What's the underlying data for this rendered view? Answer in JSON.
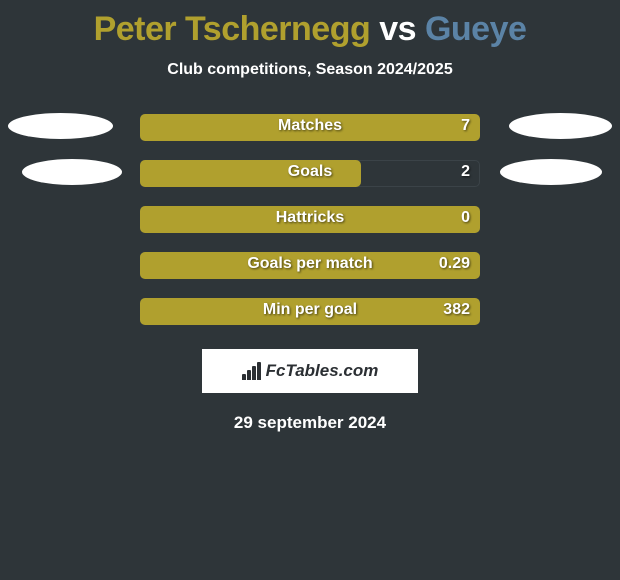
{
  "title": {
    "player1": "Peter Tschernegg",
    "vs": " vs ",
    "player2": "Gueye",
    "color1": "#b0a02e",
    "colorVs": "#ffffff",
    "color2": "#5b83a6"
  },
  "subtitle": "Club competitions, Season 2024/2025",
  "rows": [
    {
      "label": "Matches",
      "value": "7",
      "fill_pct": 100,
      "color": "#b0a02e",
      "left_ellipse": true,
      "right_ellipse": true
    },
    {
      "label": "Goals",
      "value": "2",
      "fill_pct": 65,
      "color": "#b0a02e",
      "left_ellipse": true,
      "right_ellipse": true
    },
    {
      "label": "Hattricks",
      "value": "0",
      "fill_pct": 100,
      "color": "#b0a02e",
      "left_ellipse": false,
      "right_ellipse": false
    },
    {
      "label": "Goals per match",
      "value": "0.29",
      "fill_pct": 100,
      "color": "#b0a02e",
      "left_ellipse": false,
      "right_ellipse": false
    },
    {
      "label": "Min per goal",
      "value": "382",
      "fill_pct": 100,
      "color": "#b0a02e",
      "left_ellipse": false,
      "right_ellipse": false
    }
  ],
  "logo": "FcTables.com",
  "date": "29 september 2024",
  "bar_track_width": 340
}
